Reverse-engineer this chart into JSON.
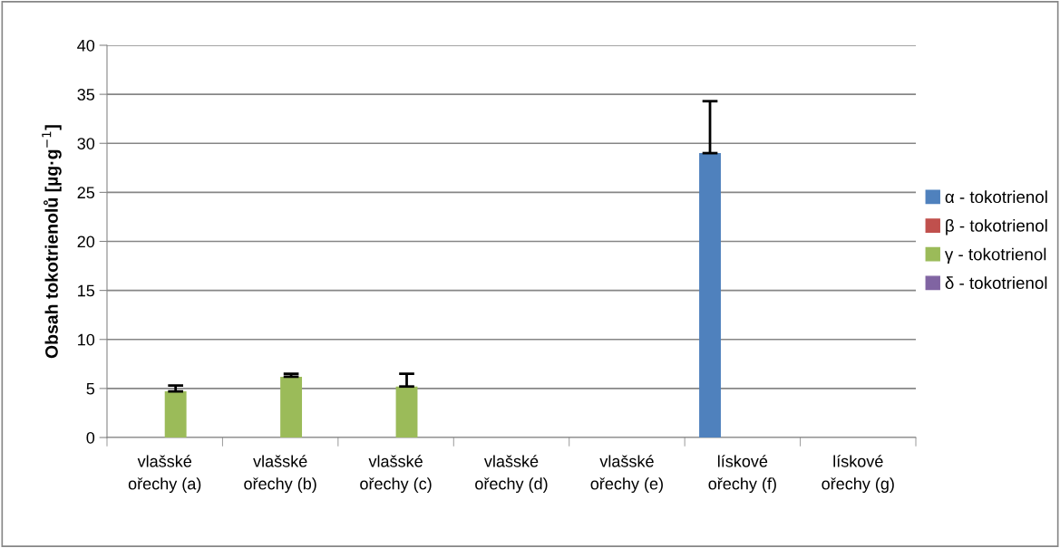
{
  "chart_data": {
    "type": "bar",
    "ylabel": "Obsah tokotrienolů [µg·g$^{−1}$]",
    "categories": [
      "vlašské\nořechy (a)",
      "vlašské\nořechy (b)",
      "vlašské\nořechy (c)",
      "vlašské\nořechy (d)",
      "vlašské\nořechy (e)",
      "lískové\nořechy (f)",
      "lískové\nořechy (g)"
    ],
    "series": [
      {
        "name": "α - tokotrienol",
        "color": "#4f81bd",
        "values": [
          0,
          0,
          0,
          0,
          0,
          29.0,
          0
        ],
        "errors": [
          null,
          null,
          null,
          null,
          null,
          [
            29.0,
            34.3
          ],
          null
        ]
      },
      {
        "name": "β - tokotrienol",
        "color": "#c0504d",
        "values": [
          0,
          0,
          0,
          0,
          0,
          0,
          0
        ]
      },
      {
        "name": "γ - tokotrienol",
        "color": "#9bbb59",
        "values": [
          4.7,
          6.2,
          5.2,
          0,
          0,
          0,
          0
        ],
        "errors": [
          [
            4.7,
            5.3
          ],
          [
            6.2,
            6.5
          ],
          [
            5.2,
            6.5
          ],
          null,
          null,
          null,
          null
        ]
      },
      {
        "name": "δ - tokotrienol",
        "color": "#8064a2",
        "values": [
          0,
          0,
          0,
          0,
          0,
          0,
          0
        ]
      }
    ],
    "ylim": [
      0,
      40
    ],
    "yticks": [
      0,
      5,
      10,
      15,
      20,
      25,
      30,
      35,
      40
    ],
    "grid": "y",
    "legend": "right"
  }
}
